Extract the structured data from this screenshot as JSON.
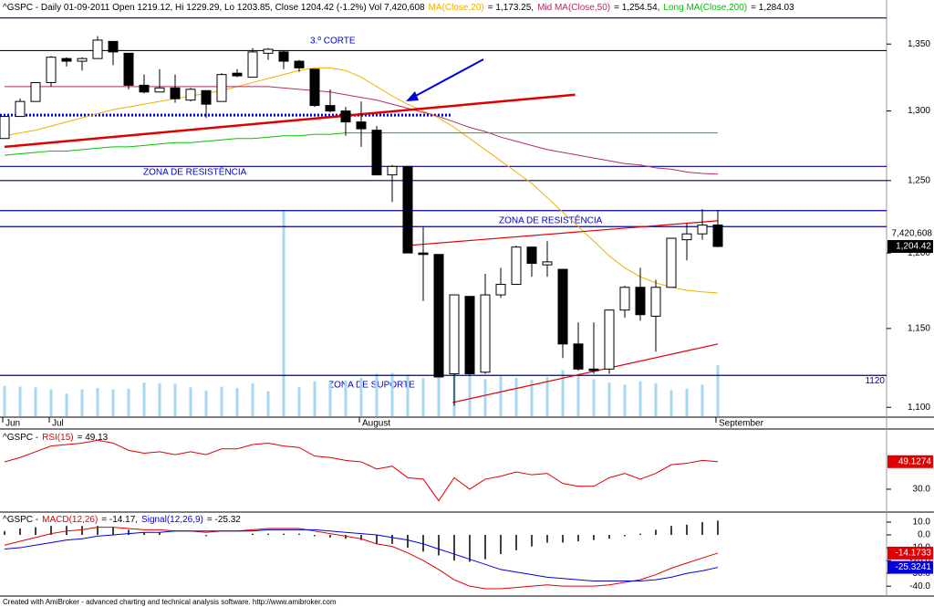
{
  "chart_data": [
    {
      "type": "candlestick",
      "title": "^GSPC - Daily 01-09-2011 Open 1219.12, Hi 1229.29, Lo 1203.85, Close 1204.42 (-1.2%) Vol 7,420,608",
      "categories": [
        "Jun",
        null,
        null,
        "Jul",
        null,
        null,
        null,
        null,
        null,
        null,
        null,
        null,
        null,
        null,
        null,
        null,
        null,
        null,
        null,
        null,
        null,
        null,
        null,
        "August",
        null,
        null,
        null,
        null,
        null,
        null,
        null,
        null,
        null,
        null,
        null,
        null,
        null,
        null,
        null,
        null,
        null,
        null,
        null,
        null,
        null,
        null,
        "September"
      ],
      "open": [
        1280,
        1296,
        1307,
        1321,
        1339,
        1337,
        1339,
        1352,
        1343,
        1319,
        1314,
        1317,
        1308,
        1315,
        1307,
        1328,
        1325,
        1343,
        1344,
        1337,
        1331,
        1304,
        1300,
        1292,
        1286,
        1254,
        1260,
        1200,
        1199,
        1121,
        1171,
        1122,
        1172,
        1179,
        1204,
        1192,
        1189,
        1140,
        1124,
        1124,
        1162,
        1177,
        1158,
        1177,
        1209,
        1213,
        1219.12
      ],
      "high": [
        1296,
        1309,
        1321,
        1341,
        1340,
        1340,
        1356,
        1352,
        1343,
        1327,
        1331,
        1327,
        1317,
        1315,
        1328,
        1331,
        1347,
        1347,
        1345,
        1338,
        1331,
        1316,
        1303,
        1307,
        1289,
        1261,
        1260,
        1218,
        1199,
        1172,
        1171,
        1186,
        1190,
        1205,
        1204,
        1208,
        1189,
        1154,
        1154,
        1162,
        1178,
        1190,
        1182,
        1210,
        1220,
        1230,
        1229.29
      ],
      "low": [
        1280,
        1296,
        1307,
        1318,
        1333,
        1330,
        1339,
        1334,
        1316,
        1313,
        1314,
        1306,
        1307,
        1295,
        1307,
        1325,
        1325,
        1338,
        1331,
        1329,
        1303,
        1299,
        1282,
        1274,
        1254,
        1235,
        1200,
        1168,
        1119,
        1101,
        1120,
        1121,
        1170,
        1179,
        1184,
        1184,
        1131,
        1123,
        1121,
        1121,
        1157,
        1155,
        1135,
        1177,
        1195,
        1209,
        1203.85
      ],
      "close": [
        1296,
        1307,
        1321,
        1340,
        1337,
        1339,
        1353,
        1344,
        1319,
        1314,
        1317,
        1309,
        1316,
        1305,
        1327,
        1326,
        1344,
        1346,
        1337,
        1332,
        1304,
        1300,
        1292,
        1287,
        1254,
        1260,
        1200,
        1199,
        1119,
        1172,
        1121,
        1172,
        1179,
        1204,
        1193,
        1194,
        1140,
        1124,
        1123,
        1162,
        1177,
        1159,
        1177,
        1210,
        1213,
        1219,
        1204.42
      ],
      "close_value_label": "1,204.42",
      "up_color": "#ffffff",
      "down_color": "#000000",
      "log_scale": true,
      "ylim": [
        1094.5,
        1374
      ],
      "yticks": [
        {
          "value": 1100,
          "label": "1,100"
        },
        {
          "value": 1150,
          "label": "1,150"
        },
        {
          "value": 1200,
          "label": "1,200"
        },
        {
          "value": 1250,
          "label": "1,250"
        },
        {
          "value": 1300,
          "label": "1,300"
        },
        {
          "value": 1350,
          "label": "1,350"
        }
      ],
      "volume": {
        "color": "#a8d8f0",
        "value_label": "7,420,608",
        "values": [
          4400000,
          4300000,
          4200000,
          3900000,
          3300000,
          3900000,
          4100000,
          3900000,
          4000000,
          4900000,
          4800000,
          4700000,
          4200000,
          3700000,
          4300000,
          4100000,
          4800000,
          3600000,
          30000000,
          4200000,
          5100000,
          4900000,
          5200000,
          5600000,
          6200000,
          6300000,
          6000000,
          5500000,
          6500000,
          6800000,
          5900000,
          5400000,
          5800000,
          5600000,
          5300000,
          5700000,
          6700000,
          6200000,
          5400000,
          4900000,
          4600000,
          5100000,
          4800000,
          3800000,
          4000000,
          4600000,
          7420608
        ]
      },
      "series": [
        {
          "name": "MA(Close,20)",
          "color": "#f0b000",
          "value_label": "= 1,173.25,",
          "values": [
            1282,
            1284,
            1286,
            1289,
            1292,
            1295,
            1298,
            1301,
            1303,
            1305,
            1307,
            1309,
            1311,
            1313,
            1315,
            1318,
            1321,
            1324,
            1327,
            1330,
            1332,
            1332,
            1330,
            1325,
            1318,
            1311,
            1305,
            1300,
            1295,
            1288,
            1280,
            1272,
            1264,
            1256,
            1248,
            1238,
            1228,
            1218,
            1208,
            1198,
            1190,
            1184,
            1180,
            1177,
            1175,
            1174,
            1173.25
          ]
        },
        {
          "name": "Mid MA(Close,50)",
          "color": "#b03060",
          "value_label": "= 1,254.54,",
          "values": [
            1318,
            1318,
            1318,
            1318,
            1318,
            1318,
            1318,
            1318,
            1318,
            1318,
            1318,
            1318,
            1318,
            1318,
            1318,
            1318,
            1318,
            1318,
            1317,
            1316,
            1315,
            1314,
            1312,
            1310,
            1308,
            1305,
            1302,
            1299,
            1296,
            1292,
            1288,
            1285,
            1281,
            1278,
            1275,
            1272,
            1270,
            1268,
            1266,
            1264,
            1262,
            1261,
            1259,
            1258,
            1256,
            1255,
            1254.54
          ]
        },
        {
          "name": "Long MA(Close,200)",
          "color": "#00c000",
          "value_label": "= 1,284.03",
          "values": [
            1268,
            1269,
            1270,
            1271,
            1271,
            1272,
            1273,
            1274,
            1274,
            1275,
            1276,
            1277,
            1277,
            1278,
            1279,
            1280,
            1280,
            1281,
            1282,
            1282,
            1283,
            1283,
            1284,
            1284,
            1284,
            1284,
            1284,
            1284,
            1284,
            1284,
            1284,
            1284,
            1284,
            1284,
            1284,
            1284,
            1284,
            1284,
            1284,
            1284,
            1284,
            1284,
            1284,
            1284,
            1284,
            1284,
            1284.03
          ]
        }
      ],
      "levels": [
        {
          "value": 1370,
          "color": "#000080"
        },
        {
          "value": 1345,
          "color": "#000080"
        },
        {
          "value": 1260,
          "color": "#0000a0"
        },
        {
          "value": 1250,
          "color": "#000060"
        },
        {
          "value": 1229,
          "color": "#0000a0"
        },
        {
          "value": 1218,
          "color": "#0000a0"
        },
        {
          "value": 1120,
          "color": "#0000a0",
          "labeled": true
        },
        {
          "value": 1297,
          "color": "#0000e0",
          "dotted": true,
          "end": 28.8
        }
      ],
      "trendlines": [
        {
          "x": [
            0,
            36.8
          ],
          "y": [
            1274,
            1312
          ],
          "color": "#e00000",
          "thick": true
        },
        {
          "x": [
            25.9,
            46
          ],
          "y": [
            1205,
            1222
          ],
          "color": "#e00000"
        },
        {
          "x": [
            28.9,
            46
          ],
          "y": [
            1103,
            1140
          ],
          "color": "#e00000"
        }
      ],
      "annotations": [
        "3.º CORTE",
        "ZONA DE RESISTÊNCIA",
        "ZONA DE RESISTÊNCIA",
        "ZONA DE SUPORTE"
      ]
    },
    {
      "type": "line",
      "title": "^GSPC -",
      "ylim": [
        17.3,
        71.8
      ],
      "yticks": [
        {
          "value": 30,
          "label": "30.0"
        }
      ],
      "series": [
        {
          "name": "RSI(15)",
          "color": "#e00000",
          "value_label": "= 49.13",
          "values": [
            49,
            52,
            56,
            60,
            61,
            62,
            64,
            62,
            57,
            55,
            56,
            54,
            56,
            54,
            58,
            58,
            61,
            62,
            60,
            59,
            53,
            52,
            50,
            49,
            44,
            46,
            38,
            37,
            22,
            38,
            30,
            37,
            39,
            42,
            40,
            41,
            34,
            32,
            32,
            38,
            41,
            37,
            41,
            47,
            48,
            50,
            49.1274
          ]
        }
      ]
    },
    {
      "type": "macd",
      "title": "^GSPC -",
      "ylim": [
        -47,
        16.4
      ],
      "yticks": [
        {
          "value": 10,
          "label": "10.0"
        },
        {
          "value": 0,
          "label": "0.0"
        },
        {
          "value": -10,
          "label": "-10.0"
        },
        {
          "value": -20,
          "label": "-20.0"
        },
        {
          "value": -30,
          "label": "-30.0"
        },
        {
          "value": -40,
          "label": "-40.0"
        }
      ],
      "series": [
        {
          "name": "MACD(12,26)",
          "color": "#e00000",
          "value_label": "= -14.17,",
          "values": [
            -8,
            -5,
            -2,
            1,
            3,
            4,
            6,
            6,
            5,
            4,
            4,
            3,
            3,
            2,
            3,
            3,
            4,
            5,
            5,
            5,
            3,
            1,
            -1,
            -3,
            -7,
            -9,
            -14,
            -20,
            -27,
            -35,
            -40,
            -42,
            -42,
            -41,
            -40,
            -39,
            -40,
            -40,
            -40,
            -39,
            -37,
            -35,
            -31,
            -26,
            -22,
            -18,
            -14.1733
          ]
        },
        {
          "name": "Signal(12,26,9)",
          "color": "#0000e0",
          "value_label": "= -25.32",
          "values": [
            -11,
            -10,
            -8,
            -6,
            -4,
            -3,
            -1,
            0,
            1,
            2,
            2,
            3,
            3,
            3,
            3,
            3,
            3,
            4,
            4,
            4,
            4,
            3,
            2,
            1,
            0,
            -2,
            -4,
            -7,
            -11,
            -15,
            -19,
            -23,
            -27,
            -29,
            -31,
            -33,
            -34,
            -35,
            -36,
            -36,
            -36,
            -36,
            -35,
            -33,
            -30,
            -28,
            -25.3241
          ]
        }
      ],
      "histogram": {
        "color": "#000000",
        "values": [
          3,
          5,
          6,
          7,
          7,
          7,
          7,
          6,
          4,
          2,
          2,
          0,
          0,
          -1,
          0,
          0,
          1,
          1,
          1,
          1,
          -1,
          -2,
          -3,
          -4,
          -7,
          -7,
          -10,
          -13,
          -16,
          -20,
          -21,
          -19,
          -15,
          -12,
          -9,
          -6,
          -6,
          -5,
          -4,
          -3,
          -1,
          1,
          4,
          7,
          8,
          10,
          11.15
        ]
      }
    }
  ],
  "footer": "Created with AmiBroker - advanced charting and technical analysis software. http://www.amibroker.com"
}
